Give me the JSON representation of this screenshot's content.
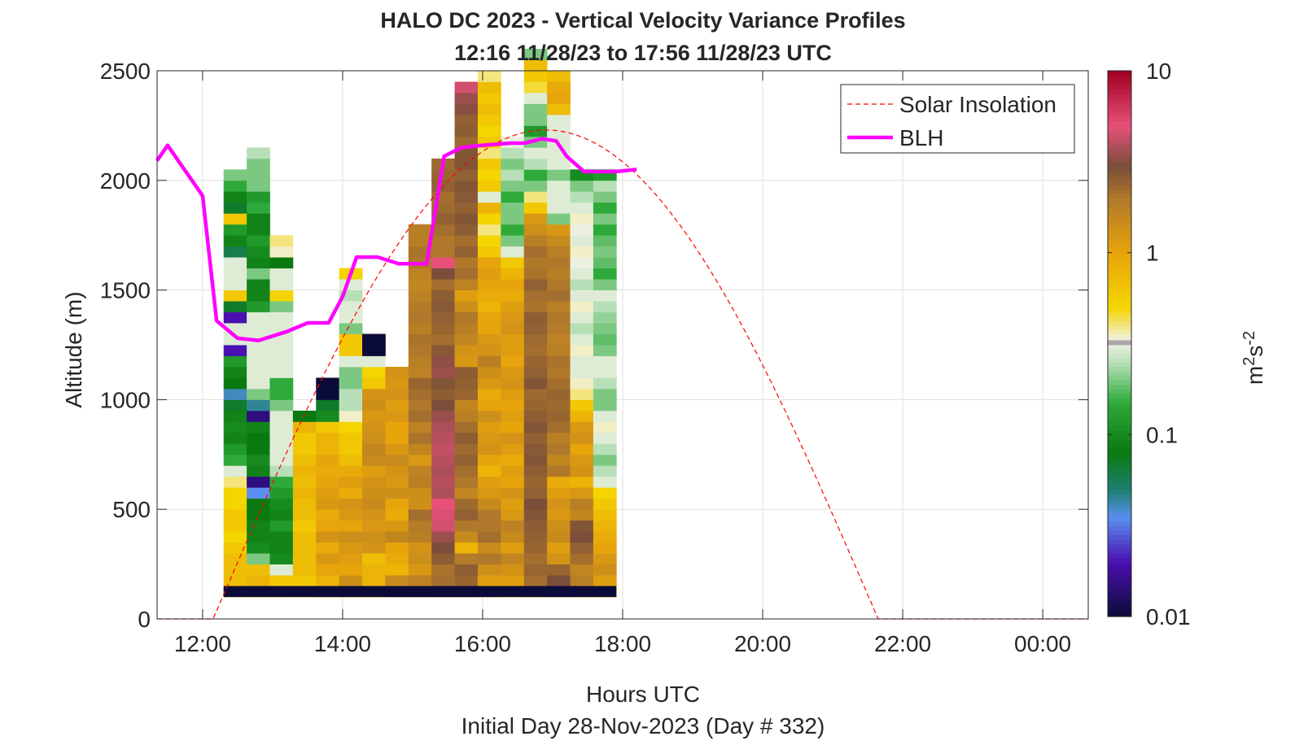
{
  "chart_data": {
    "type": "heatmap",
    "title": "HALO DC 2023 - Vertical Velocity Variance Profiles",
    "subtitle": "12:16 11/28/23 to 17:56 11/28/23  UTC",
    "xlabel": "Hours UTC",
    "footer": "Initial Day 28-Nov-2023 (Day # 332)",
    "ylabel": "Altitude (m)",
    "colorbar_label_base": "m",
    "colorbar_label_sup1": "2",
    "colorbar_label_mid": "s",
    "colorbar_label_sup2": "-2",
    "x_axis": {
      "range_hours": [
        11.35,
        24.65
      ],
      "ticks": [
        {
          "hour": 12,
          "label": "12:00"
        },
        {
          "hour": 14,
          "label": "14:00"
        },
        {
          "hour": 16,
          "label": "16:00"
        },
        {
          "hour": 18,
          "label": "18:00"
        },
        {
          "hour": 20,
          "label": "20:00"
        },
        {
          "hour": 22,
          "label": "22:00"
        },
        {
          "hour": 24,
          "label": "00:00"
        }
      ]
    },
    "y_axis": {
      "range": [
        0,
        2500
      ],
      "ticks": [
        {
          "value": 0,
          "label": "0"
        },
        {
          "value": 500,
          "label": "500"
        },
        {
          "value": 1000,
          "label": "1000"
        },
        {
          "value": 1500,
          "label": "1500"
        },
        {
          "value": 2000,
          "label": "2000"
        },
        {
          "value": 2500,
          "label": "2500"
        }
      ]
    },
    "colorbar": {
      "scale": "log",
      "range": [
        0.01,
        10
      ],
      "ticks": [
        {
          "value": 0.01,
          "label": "0.01"
        },
        {
          "value": 0.1,
          "label": "0.1"
        },
        {
          "value": 1,
          "label": "1"
        },
        {
          "value": 10,
          "label": "10"
        }
      ],
      "stops": [
        {
          "value": 0.01,
          "color": "#0b0b3a"
        },
        {
          "value": 0.02,
          "color": "#4a10b0"
        },
        {
          "value": 0.035,
          "color": "#5a8ff0"
        },
        {
          "value": 0.05,
          "color": "#1f7f6f"
        },
        {
          "value": 0.08,
          "color": "#0a7a10"
        },
        {
          "value": 0.15,
          "color": "#2eaa3a"
        },
        {
          "value": 0.25,
          "color": "#b8e0b8"
        },
        {
          "value": 0.33,
          "color": "#f2f2e6"
        },
        {
          "value": 0.5,
          "color": "#f4d500"
        },
        {
          "value": 1.0,
          "color": "#e7a40b"
        },
        {
          "value": 2.0,
          "color": "#b0782a"
        },
        {
          "value": 3.0,
          "color": "#7a4e3a"
        },
        {
          "value": 5.0,
          "color": "#e8507a"
        },
        {
          "value": 10.0,
          "color": "#a00020"
        }
      ],
      "mid_band": {
        "value": 0.32,
        "color": "#a8a8a8"
      }
    },
    "legend": {
      "placement": "top-right",
      "entries": [
        {
          "label": "Solar Insolation",
          "color": "#ff0000",
          "style": "dashed"
        },
        {
          "label": "BLH",
          "color": "#ff00ff",
          "style": "solid"
        }
      ]
    },
    "grid": true,
    "heatmap": {
      "bin_height_m": 50,
      "columns": [
        {
          "start": 12.3,
          "end": 12.63,
          "from_alt": 100,
          "cells": [
            0.7,
            0.7,
            0.7,
            0.7,
            0.6,
            0.5,
            0.6,
            0.6,
            0.5,
            0.5,
            0.4,
            0.3,
            0.15,
            0.12,
            0.09,
            0.1,
            0.09,
            0.07,
            0.04,
            0.08,
            0.09,
            0.12,
            0.02,
            0.3,
            0.3,
            0.02,
            0.07,
            0.6,
            0.3,
            0.3,
            0.3,
            0.06,
            0.09,
            0.12,
            0.6,
            0.07,
            0.09,
            0.15,
            0.2
          ]
        },
        {
          "start": 12.63,
          "end": 12.96,
          "from_alt": 100,
          "cells": [
            0.8,
            0.8,
            0.7,
            0.2,
            0.1,
            0.09,
            0.09,
            0.08,
            0.08,
            0.035,
            0.015,
            0.09,
            0.1,
            0.08,
            0.08,
            0.09,
            0.015,
            0.045,
            0.2,
            0.3,
            0.3,
            0.3,
            0.3,
            0.3,
            0.3,
            0.3,
            0.12,
            0.09,
            0.09,
            0.2,
            0.09,
            0.1,
            0.12,
            0.09,
            0.09,
            0.15,
            0.12,
            0.2,
            0.2,
            0.2,
            0.25
          ]
        },
        {
          "start": 12.96,
          "end": 13.29,
          "from_alt": 100,
          "cells": [
            0.7,
            0.6,
            0.3,
            0.1,
            0.09,
            0.09,
            0.12,
            0.09,
            0.1,
            0.12,
            0.15,
            0.25,
            0.3,
            0.3,
            0.3,
            0.3,
            0.3,
            0.2,
            0.15,
            0.15,
            0.3,
            0.3,
            0.3,
            0.3,
            0.3,
            0.3,
            0.2,
            0.5,
            0.3,
            0.3,
            0.08,
            0.35,
            0.4
          ]
        },
        {
          "start": 13.29,
          "end": 13.62,
          "from_alt": 100,
          "cells": [
            0.6,
            0.6,
            0.7,
            0.7,
            0.7,
            0.7,
            0.6,
            0.7,
            0.7,
            0.8,
            0.7,
            0.8,
            0.7,
            0.6,
            0.6,
            0.8,
            0.08
          ]
        },
        {
          "start": 13.62,
          "end": 13.95,
          "from_alt": 100,
          "cells": [
            1.2,
            0.8,
            1.0,
            1.2,
            0.9,
            1.3,
            1.0,
            0.9,
            1.2,
            1.1,
            1.0,
            0.9,
            1.0,
            0.8,
            0.8,
            0.6,
            0.1,
            0.07,
            0.01,
            0.01
          ]
        },
        {
          "start": 13.95,
          "end": 14.28,
          "from_alt": 100,
          "cells": [
            1.2,
            1.4,
            1.0,
            1.1,
            1.2,
            1.4,
            1.0,
            1.2,
            1.3,
            0.9,
            1.1,
            0.9,
            0.7,
            0.6,
            0.6,
            0.5,
            0.35,
            0.25,
            0.25,
            0.2,
            0.2,
            0.3,
            0.6,
            0.6,
            0.2,
            0.3,
            0.3,
            0.25,
            0.3,
            0.5
          ]
        },
        {
          "start": 14.28,
          "end": 14.61,
          "from_alt": 100,
          "cells": [
            0.9,
            0.8,
            0.8,
            0.7,
            1.3,
            1.4,
            1.2,
            1.3,
            1.5,
            1.4,
            1.3,
            1.1,
            1.5,
            1.6,
            1.4,
            1.3,
            1.2,
            1.4,
            1.3,
            0.6,
            0.5,
            0.3,
            0.01,
            0.01
          ]
        },
        {
          "start": 14.61,
          "end": 14.94,
          "from_alt": 100,
          "cells": [
            1.6,
            1.5,
            0.8,
            0.9,
            1.0,
            1.6,
            1.2,
            0.9,
            1.0,
            1.4,
            1.2,
            1.3,
            1.5,
            1.2,
            1.0,
            1.0,
            1.2,
            1.1,
            1.3,
            1.2,
            1.3
          ]
        },
        {
          "start": 14.94,
          "end": 15.27,
          "from_alt": 100,
          "cells": [
            1.8,
            1.7,
            1.2,
            1.4,
            1.3,
            1.8,
            1.9,
            2.2,
            1.4,
            1.4,
            1.8,
            1.7,
            1.2,
            1.6,
            2.1,
            1.7,
            2.2,
            2.0,
            2.2,
            2.4,
            1.7,
            1.8,
            2.0,
            2.1,
            1.8,
            2.0,
            1.9,
            1.7,
            1.6,
            1.7,
            2.0,
            2.1,
            1.8,
            1.8
          ]
        },
        {
          "start": 15.27,
          "end": 15.6,
          "from_alt": 100,
          "cells": [
            2.0,
            2.2,
            2.1,
            2.6,
            3.0,
            3.5,
            4.5,
            4.7,
            5.0,
            3.8,
            4.0,
            3.8,
            4.0,
            4.2,
            4.0,
            3.8,
            3.5,
            3.0,
            2.6,
            2.8,
            3.5,
            3.3,
            2.7,
            2.2,
            2.4,
            2.5,
            2.7,
            2.6,
            2.2,
            3.0,
            5.0,
            2.0,
            2.0,
            2.2,
            2.5,
            2.3,
            2.2,
            2.5,
            2.4,
            2.3
          ]
        },
        {
          "start": 15.6,
          "end": 15.93,
          "from_alt": 100,
          "cells": [
            2.0,
            2.4,
            2.6,
            1.9,
            0.8,
            1.5,
            2.0,
            2.5,
            2.3,
            1.6,
            2.0,
            2.2,
            2.5,
            2.3,
            2.6,
            2.2,
            1.8,
            1.6,
            2.4,
            2.5,
            2.6,
            1.2,
            1.3,
            1.6,
            1.8,
            2.0,
            1.4,
            1.1,
            1.7,
            2.2,
            2.0,
            2.5,
            2.2,
            2.6,
            2.8,
            2.5,
            2.7,
            2.8,
            2.5,
            2.8,
            2.8,
            2.3,
            2.6,
            2.5,
            3.2,
            3.5,
            4.5
          ]
        },
        {
          "start": 15.93,
          "end": 16.26,
          "from_alt": 100,
          "cells": [
            1.3,
            1.1,
            1.4,
            2.0,
            1.5,
            2.2,
            2.0,
            2.0,
            1.5,
            1.2,
            1.1,
            0.8,
            1.0,
            1.3,
            1.2,
            1.1,
            1.4,
            1.0,
            0.9,
            1.2,
            1.4,
            1.8,
            1.3,
            1.2,
            1.0,
            1.0,
            0.8,
            0.9,
            1.0,
            1.1,
            1.0,
            0.6,
            0.5,
            0.4,
            0.5,
            0.8,
            0.3,
            0.6,
            0.5,
            0.6,
            0.4,
            0.6,
            0.5,
            0.6,
            0.7,
            0.6,
            0.7,
            0.4
          ]
        },
        {
          "start": 16.26,
          "end": 16.59,
          "from_alt": 100,
          "cells": [
            0.8,
            1.1,
            1.3,
            1.6,
            1.1,
            1.5,
            1.7,
            1.2,
            1.1,
            1.3,
            1.0,
            1.1,
            0.9,
            1.1,
            1.3,
            1.0,
            1.1,
            1.0,
            1.1,
            1.3,
            1.2,
            1.0,
            1.1,
            1.1,
            1.3,
            1.2,
            1.1,
            0.9,
            1.0,
            0.8,
            0.6,
            0.3,
            0.2,
            0.15,
            0.2,
            0.2,
            0.15,
            0.2,
            0.25,
            0.2,
            0.25,
            0.32
          ]
        },
        {
          "start": 16.59,
          "end": 16.92,
          "from_alt": 100,
          "cells": [
            1.1,
            2.2,
            2.4,
            2.2,
            2.4,
            2.5,
            2.6,
            2.8,
            3.0,
            2.5,
            2.4,
            2.6,
            2.8,
            2.7,
            2.5,
            2.8,
            2.6,
            2.4,
            2.3,
            2.8,
            2.5,
            2.4,
            2.2,
            2.3,
            2.5,
            2.6,
            2.1,
            2.2,
            2.5,
            2.1,
            2.0,
            2.2,
            1.8,
            1.4,
            1.2,
            0.6,
            0.4,
            0.2,
            0.15,
            0.25,
            0.3,
            0.2,
            0.12,
            0.2,
            0.2,
            0.3,
            0.45,
            0.6,
            0.7,
            0.2
          ]
        },
        {
          "start": 16.92,
          "end": 17.25,
          "from_alt": 100,
          "cells": [
            1.3,
            3.0,
            2.4,
            1.3,
            1.1,
            1.5,
            1.4,
            1.2,
            1.3,
            1.1,
            0.9,
            2.0,
            1.6,
            2.0,
            1.8,
            2.2,
            2.4,
            2.3,
            2.4,
            2.2,
            2.0,
            2.1,
            1.8,
            1.7,
            1.9,
            2.0,
            1.8,
            2.2,
            2.0,
            1.8,
            2.0,
            1.8,
            1.5,
            1.2,
            0.2,
            0.3,
            0.3,
            0.3,
            0.2,
            0.3,
            0.3,
            0.3,
            0.3,
            0.3,
            0.7,
            1.0,
            0.9,
            0.7
          ]
        },
        {
          "start": 17.25,
          "end": 17.58,
          "from_alt": 100,
          "cells": [
            1.2,
            1.8,
            1.6,
            2.2,
            2.5,
            3.0,
            2.8,
            1.6,
            1.8,
            1.2,
            0.8,
            1.3,
            1.2,
            1.0,
            1.3,
            1.2,
            0.8,
            0.6,
            0.4,
            0.35,
            0.3,
            0.3,
            0.35,
            0.3,
            0.25,
            0.3,
            0.35,
            0.3,
            0.25,
            0.3,
            0.32,
            0.35,
            0.3,
            0.32,
            0.35,
            0.3,
            0.25,
            0.2,
            0.1
          ]
        },
        {
          "start": 17.58,
          "end": 17.91,
          "from_alt": 100,
          "cells": [
            0.9,
            1.1,
            1.4,
            1.2,
            1.0,
            0.9,
            0.8,
            0.7,
            0.6,
            0.5,
            0.3,
            0.25,
            0.2,
            0.25,
            0.3,
            0.35,
            0.3,
            0.2,
            0.2,
            0.25,
            0.3,
            0.3,
            0.2,
            0.18,
            0.2,
            0.22,
            0.25,
            0.3,
            0.2,
            0.15,
            0.18,
            0.2,
            0.18,
            0.15,
            0.2,
            0.15,
            0.2,
            0.25,
            0.12
          ]
        }
      ],
      "floor_band": {
        "start": 12.3,
        "end": 17.91,
        "alt_low": 100,
        "alt_high": 150,
        "value": 0.01
      }
    },
    "blh_series": {
      "name": "BLH",
      "x": [
        11.35,
        11.5,
        12.0,
        12.2,
        12.5,
        12.8,
        13.2,
        13.5,
        13.8,
        14.0,
        14.2,
        14.5,
        14.8,
        15.2,
        15.45,
        15.7,
        16.0,
        16.4,
        16.6,
        16.85,
        17.05,
        17.2,
        17.45,
        17.9,
        18.2
      ],
      "y": [
        2090,
        2160,
        1930,
        1360,
        1280,
        1270,
        1310,
        1350,
        1350,
        1470,
        1650,
        1650,
        1620,
        1620,
        2110,
        2150,
        2160,
        2170,
        2170,
        2190,
        2180,
        2110,
        2040,
        2040,
        2050
      ]
    },
    "solar_series": {
      "name": "Solar Insolation",
      "sunrise_hour": 12.15,
      "sunset_hour": 21.65,
      "peak_hour": 16.9,
      "peak_value": 2230,
      "zero_from_hour": 11.35,
      "zero_to_hour": 24.65
    }
  }
}
